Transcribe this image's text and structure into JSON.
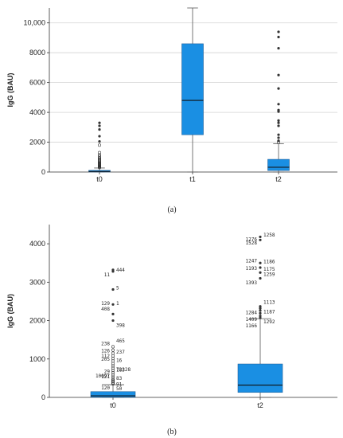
{
  "chart_data": [
    {
      "type": "box",
      "panel": "a",
      "caption": "(a)",
      "ylabel": "IgG (BAU)",
      "ylim": [
        0,
        11000
      ],
      "yticks": [
        0,
        2000,
        4000,
        6000,
        8000,
        10000
      ],
      "ytick_labels": [
        "0",
        "2000",
        "4000",
        "6000",
        "8000",
        "10,000"
      ],
      "grid": true,
      "box_color": "#1a8fe3",
      "categories": [
        "t0",
        "t1",
        "t2"
      ],
      "boxes": [
        {
          "category": "t0",
          "whisker_low": 0,
          "q1": 5,
          "median": 40,
          "q3": 110,
          "whisker_high": 270,
          "outliers": [
            300,
            330,
            360,
            390,
            420,
            450,
            480,
            520,
            560,
            600,
            650,
            700,
            760,
            820,
            880,
            950,
            1050,
            1150,
            1300,
            1800,
            2050,
            2400,
            2850,
            3100,
            3300
          ]
        },
        {
          "category": "t1",
          "whisker_low": 0,
          "q1": 2500,
          "median": 4800,
          "q3": 8600,
          "whisker_high": 11000,
          "outliers": []
        },
        {
          "category": "t2",
          "whisker_low": 0,
          "q1": 100,
          "median": 320,
          "q3": 850,
          "whisker_high": 1900,
          "outliers": [
            2000,
            2100,
            2300,
            2500,
            3100,
            3300,
            3450,
            4050,
            4150,
            4550,
            5600,
            6500,
            8300,
            9050,
            9400
          ]
        }
      ]
    },
    {
      "type": "box",
      "panel": "b",
      "caption": "(b)",
      "ylabel": "IgG (BAU)",
      "ylim": [
        0,
        4500
      ],
      "yticks": [
        0,
        1000,
        2000,
        3000,
        4000
      ],
      "ytick_labels": [
        "0",
        "1000",
        "2000",
        "3000",
        "4000"
      ],
      "grid": false,
      "box_color": "#1a8fe3",
      "categories": [
        "t0",
        "t2"
      ],
      "boxes": [
        {
          "category": "t0",
          "whisker_low": 0,
          "q1": 5,
          "median": 40,
          "q3": 150,
          "whisker_high": 330,
          "outliers": [
            350,
            380,
            410,
            440,
            480,
            530,
            580,
            640,
            700,
            760,
            820,
            880,
            950,
            1010,
            1080,
            1150,
            1230,
            1320,
            2000,
            2170,
            2420,
            2810,
            3280,
            3320
          ]
        },
        {
          "category": "t2",
          "whisker_low": 0,
          "q1": 130,
          "median": 320,
          "q3": 870,
          "whisker_high": 2050,
          "outliers": [
            2070,
            2120,
            2190,
            2260,
            2320,
            2370,
            3100,
            3250,
            3380,
            3500,
            4100,
            4180
          ]
        }
      ],
      "outlier_labels": [
        {
          "category": "t0",
          "label": "444",
          "value": 3320
        },
        {
          "category": "t0",
          "label": "11",
          "value": 3190
        },
        {
          "category": "t0",
          "label": "5",
          "value": 2850
        },
        {
          "category": "t0",
          "label": "129",
          "value": 2450
        },
        {
          "category": "t0",
          "label": "1",
          "value": 2450
        },
        {
          "category": "t0",
          "label": "408",
          "value": 2300
        },
        {
          "category": "t0",
          "label": "398",
          "value": 1880
        },
        {
          "category": "t0",
          "label": "238",
          "value": 1400
        },
        {
          "category": "t0",
          "label": "465",
          "value": 1470
        },
        {
          "category": "t0",
          "label": "126",
          "value": 1210
        },
        {
          "category": "t0",
          "label": "237",
          "value": 1180
        },
        {
          "category": "t0",
          "label": "112",
          "value": 1080
        },
        {
          "category": "t0",
          "label": "16",
          "value": 960
        },
        {
          "category": "t0",
          "label": "205",
          "value": 1000
        },
        {
          "category": "t0",
          "label": "183",
          "value": 720
        },
        {
          "category": "t0",
          "label": "29",
          "value": 670
        },
        {
          "category": "t0",
          "label": "72228",
          "value": 730
        },
        {
          "category": "t0",
          "label": "121",
          "value": 540
        },
        {
          "category": "t0",
          "label": "83",
          "value": 500
        },
        {
          "category": "t0",
          "label": "10097",
          "value": 560
        },
        {
          "category": "t0",
          "label": "91",
          "value": 340
        },
        {
          "category": "t0",
          "label": "120",
          "value": 250
        },
        {
          "category": "t0",
          "label": "50",
          "value": 230
        },
        {
          "category": "t2",
          "label": "1276",
          "value": 4120
        },
        {
          "category": "t2",
          "label": "1258",
          "value": 4230
        },
        {
          "category": "t2",
          "label": "1528",
          "value": 4020
        },
        {
          "category": "t2",
          "label": "1186",
          "value": 3540
        },
        {
          "category": "t2",
          "label": "1247",
          "value": 3560
        },
        {
          "category": "t2",
          "label": "1175",
          "value": 3340
        },
        {
          "category": "t2",
          "label": "1193",
          "value": 3360
        },
        {
          "category": "t2",
          "label": "1259",
          "value": 3200
        },
        {
          "category": "t2",
          "label": "1393",
          "value": 2990
        },
        {
          "category": "t2",
          "label": "1113",
          "value": 2480
        },
        {
          "category": "t2",
          "label": "1284",
          "value": 2210
        },
        {
          "category": "t2",
          "label": "1187",
          "value": 2230
        },
        {
          "category": "t2",
          "label": "1409",
          "value": 2030
        },
        {
          "category": "t2",
          "label": "1292",
          "value": 1970
        },
        {
          "category": "t2",
          "label": "1166",
          "value": 1870
        }
      ]
    }
  ]
}
